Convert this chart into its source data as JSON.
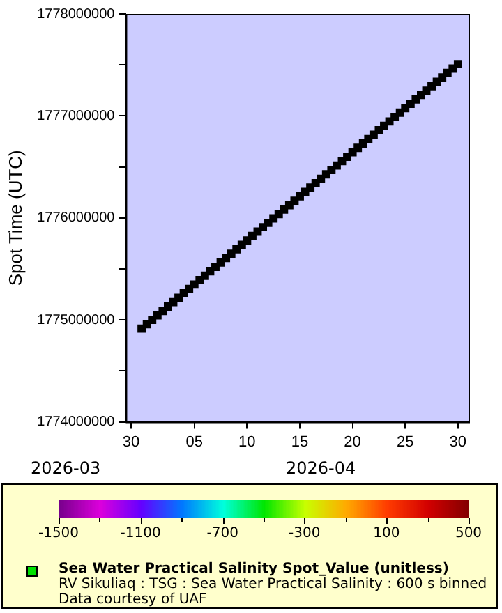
{
  "chart_data": {
    "type": "scatter",
    "ylabel": "Spot Time (UTC)",
    "x": [
      "2026-03-31T00:00",
      "2026-03-31T12:00",
      "2026-04-01T00:00",
      "2026-04-01T12:00",
      "2026-04-02T00:00",
      "2026-04-02T12:00",
      "2026-04-03T00:00",
      "2026-04-03T12:00",
      "2026-04-04T00:00",
      "2026-04-04T12:00",
      "2026-04-05T00:00",
      "2026-04-05T12:00",
      "2026-04-06T00:00",
      "2026-04-06T12:00",
      "2026-04-07T00:00",
      "2026-04-07T12:00",
      "2026-04-08T00:00",
      "2026-04-08T12:00",
      "2026-04-09T00:00",
      "2026-04-09T12:00",
      "2026-04-10T00:00",
      "2026-04-10T12:00",
      "2026-04-11T00:00",
      "2026-04-11T12:00",
      "2026-04-12T00:00",
      "2026-04-12T12:00",
      "2026-04-13T00:00",
      "2026-04-13T12:00",
      "2026-04-14T00:00",
      "2026-04-14T12:00",
      "2026-04-15T00:00",
      "2026-04-15T12:00",
      "2026-04-16T00:00",
      "2026-04-16T12:00",
      "2026-04-17T00:00",
      "2026-04-17T12:00",
      "2026-04-18T00:00",
      "2026-04-18T12:00",
      "2026-04-19T00:00",
      "2026-04-19T12:00",
      "2026-04-20T00:00",
      "2026-04-20T12:00",
      "2026-04-21T00:00",
      "2026-04-21T12:00",
      "2026-04-22T00:00",
      "2026-04-22T12:00",
      "2026-04-23T00:00",
      "2026-04-23T12:00",
      "2026-04-24T00:00",
      "2026-04-24T12:00",
      "2026-04-25T00:00",
      "2026-04-25T12:00",
      "2026-04-26T00:00",
      "2026-04-26T12:00",
      "2026-04-27T00:00",
      "2026-04-27T12:00",
      "2026-04-28T00:00",
      "2026-04-28T12:00",
      "2026-04-29T00:00",
      "2026-04-29T12:00",
      "2026-04-30T00:00"
    ],
    "values": [
      1774915200,
      1774958400,
      1775001600,
      1775044800,
      1775088000,
      1775131200,
      1775174400,
      1775217600,
      1775260800,
      1775304000,
      1775347200,
      1775390400,
      1775433600,
      1775476800,
      1775520000,
      1775563200,
      1775606400,
      1775649600,
      1775692800,
      1775736000,
      1775779200,
      1775822400,
      1775865600,
      1775908800,
      1775952000,
      1775995200,
      1776038400,
      1776081600,
      1776124800,
      1776168000,
      1776211200,
      1776254400,
      1776297600,
      1776340800,
      1776384000,
      1776427200,
      1776470400,
      1776513600,
      1776556800,
      1776600000,
      1776643200,
      1776686400,
      1776729600,
      1776772800,
      1776816000,
      1776859200,
      1776902400,
      1776945600,
      1776988800,
      1777032000,
      1777075200,
      1777118400,
      1777161600,
      1777204800,
      1777248000,
      1777291200,
      1777334400,
      1777377600,
      1777420800,
      1777464000,
      1777507200
    ],
    "color": "#000000",
    "marker": "square",
    "xlim": [
      "2026-03-29T12:00",
      "2026-05-01T00:00"
    ],
    "xticks": [
      {
        "value": "2026-03-30",
        "label": "30"
      },
      {
        "value": "2026-04-05",
        "label": "05"
      },
      {
        "value": "2026-04-10",
        "label": "10"
      },
      {
        "value": "2026-04-15",
        "label": "15"
      },
      {
        "value": "2026-04-20",
        "label": "20"
      },
      {
        "value": "2026-04-25",
        "label": "25"
      },
      {
        "value": "2026-04-30",
        "label": "30"
      }
    ],
    "ylim": [
      1774000000,
      1778000000
    ],
    "yticks": [
      1774000000,
      {
        "value": 1774500000,
        "label": null
      },
      1775000000,
      {
        "value": 1775500000,
        "label": null
      },
      1776000000,
      {
        "value": 1776500000,
        "label": null
      },
      1777000000,
      {
        "value": 1777500000,
        "label": null
      },
      1778000000
    ],
    "annotations": [
      "2026-03",
      "2026-04",
      "RV Sikuliaq : TSG : Sea Water Practical Salinity : 600 s binned",
      "Data courtesy of UAF"
    ],
    "clabel": "Sea Water Practical Salinity Spot_Value (unitless)",
    "clim": [
      -1500,
      500
    ],
    "cticks": [
      -1500,
      {
        "value": -1300,
        "label": null
      },
      -1100,
      {
        "value": -900,
        "label": null
      },
      -700,
      {
        "value": -500,
        "label": null
      },
      -300,
      {
        "value": -100,
        "label": null
      },
      100,
      {
        "value": 300,
        "label": null
      },
      500
    ],
    "grid": false,
    "legend": false
  }
}
